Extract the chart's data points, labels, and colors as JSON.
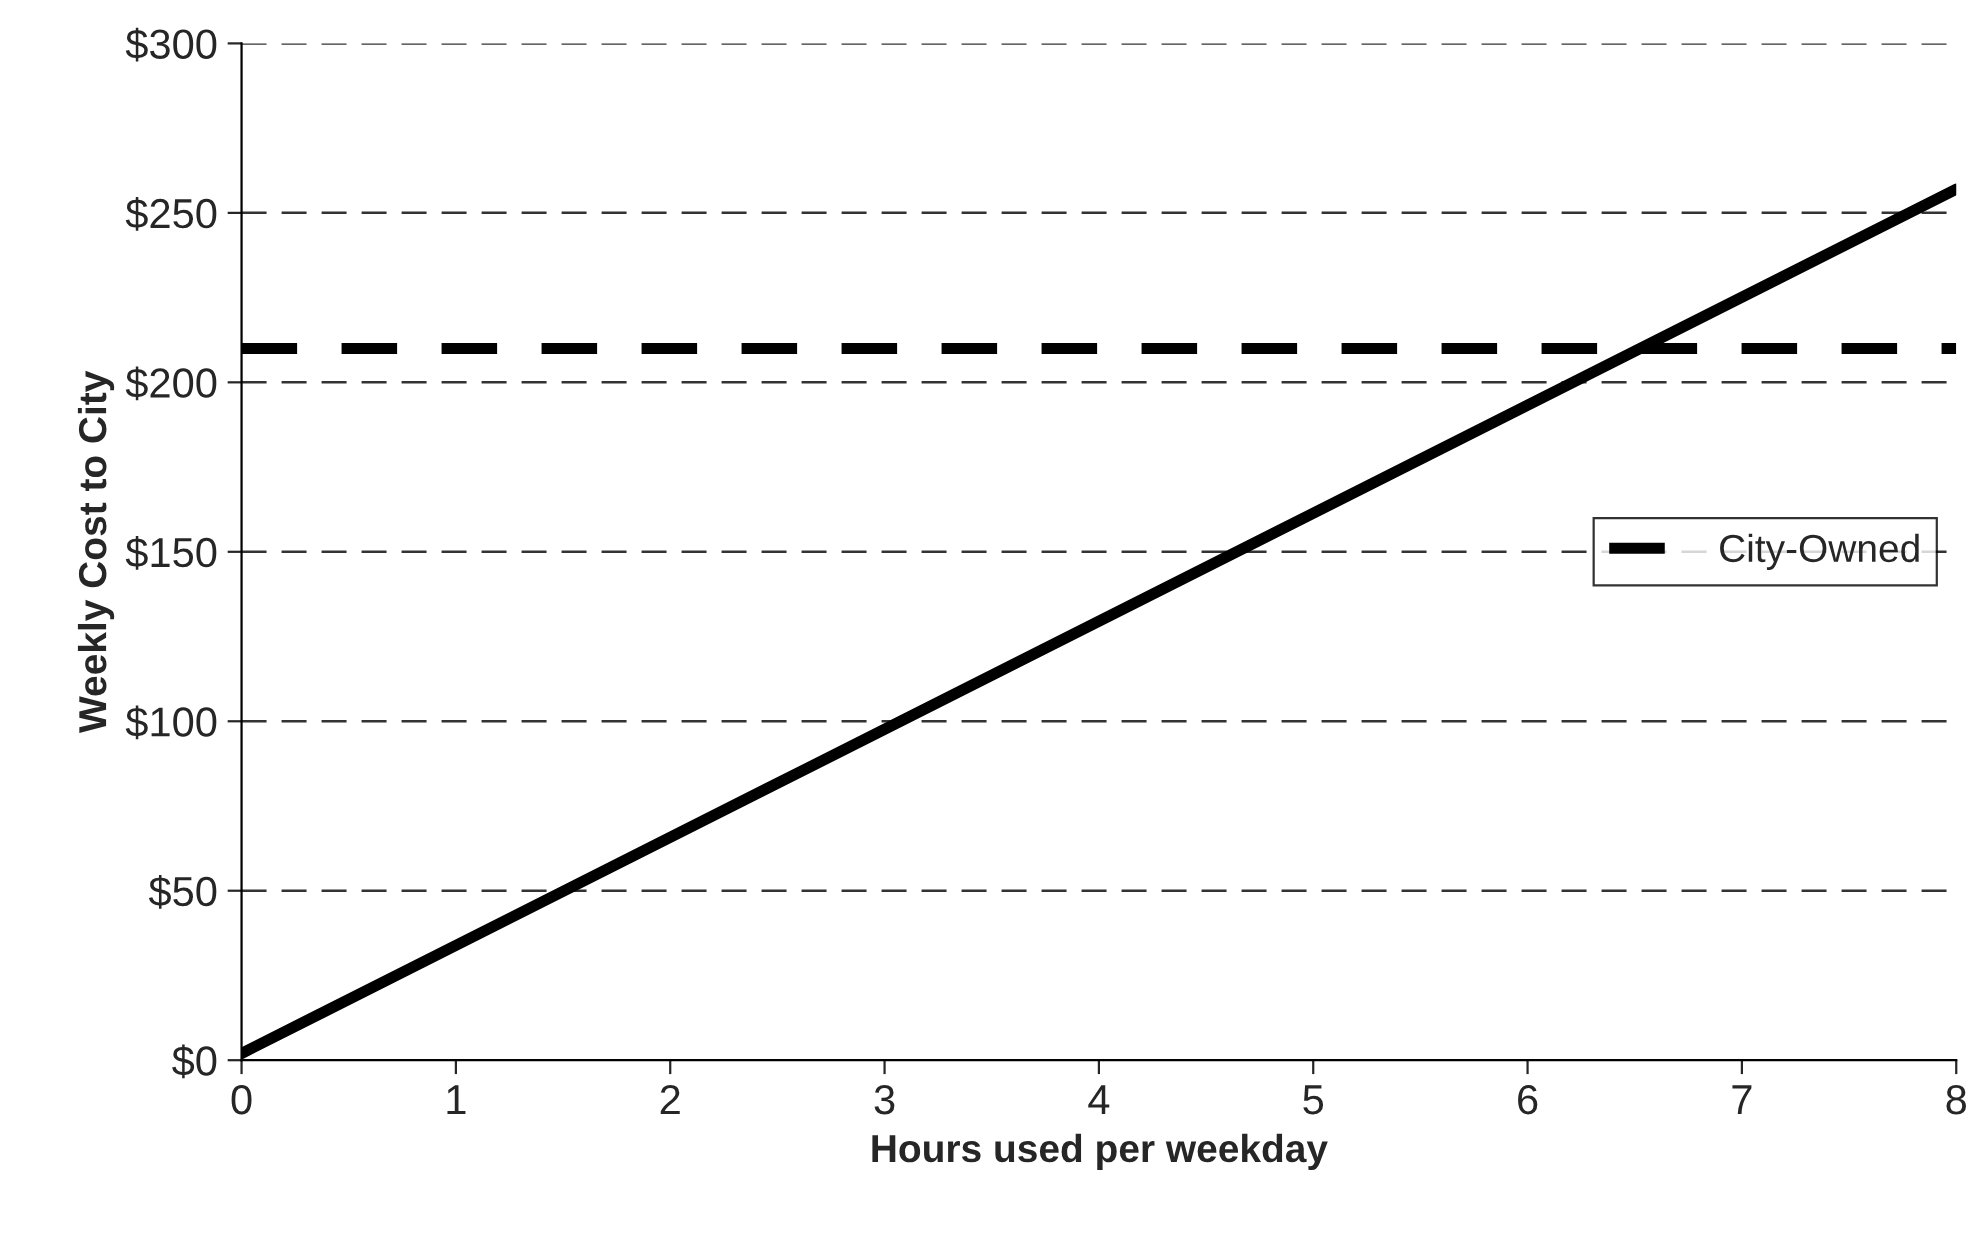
{
  "chart_data": {
    "type": "line",
    "xlabel": "Hours used per weekday",
    "ylabel": "Weekly Cost to City",
    "x": [
      0,
      8
    ],
    "series": [
      {
        "name": "City-Owned",
        "color": "#000000",
        "line_style": "dashed",
        "values": [
          210,
          210
        ]
      },
      {
        "color": "#000000",
        "line_style": "solid",
        "values": [
          2,
          257
        ]
      }
    ],
    "xlim": [
      0,
      8
    ],
    "xticks": [
      0,
      1,
      2,
      3,
      4,
      5,
      6,
      7,
      8
    ],
    "ylim": [
      0,
      300
    ],
    "yticks": [
      {
        "value": 0,
        "label": "$0"
      },
      {
        "value": 50,
        "label": "$50"
      },
      {
        "value": 100,
        "label": "$100"
      },
      {
        "value": 150,
        "label": "$150"
      },
      {
        "value": 200,
        "label": "$200"
      },
      {
        "value": 250,
        "label": "$250"
      },
      {
        "value": 300,
        "label": "$300"
      }
    ],
    "grid": "y",
    "legend": "right"
  }
}
